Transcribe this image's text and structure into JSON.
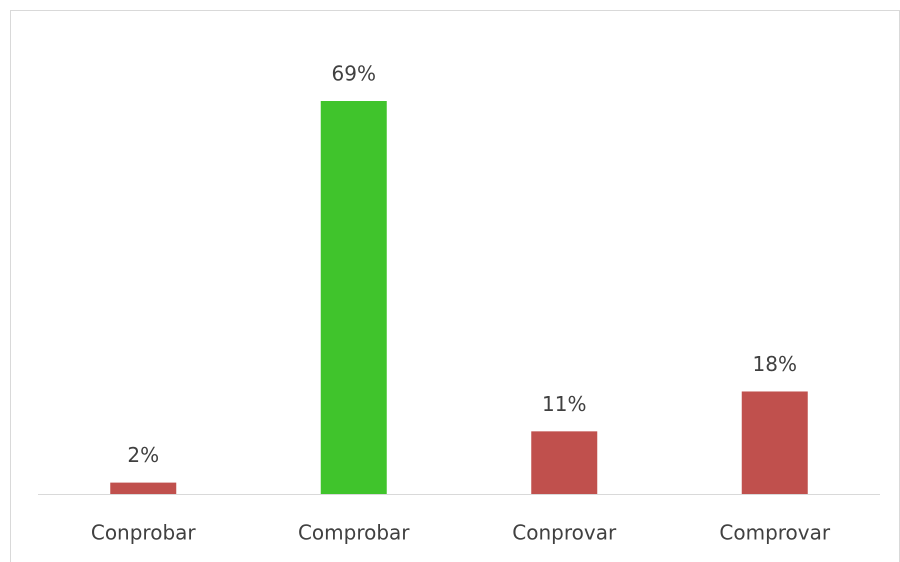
{
  "chart_data": {
    "type": "bar",
    "categories": [
      "Conprobar",
      "Comprobar",
      "Conprovar",
      "Comprovar"
    ],
    "values": [
      2,
      69,
      11,
      18
    ],
    "value_labels": [
      "2%",
      "69%",
      "11%",
      "18%"
    ],
    "colors": [
      "#c0504d",
      "#40c42c",
      "#c0504d",
      "#c0504d"
    ]
  }
}
